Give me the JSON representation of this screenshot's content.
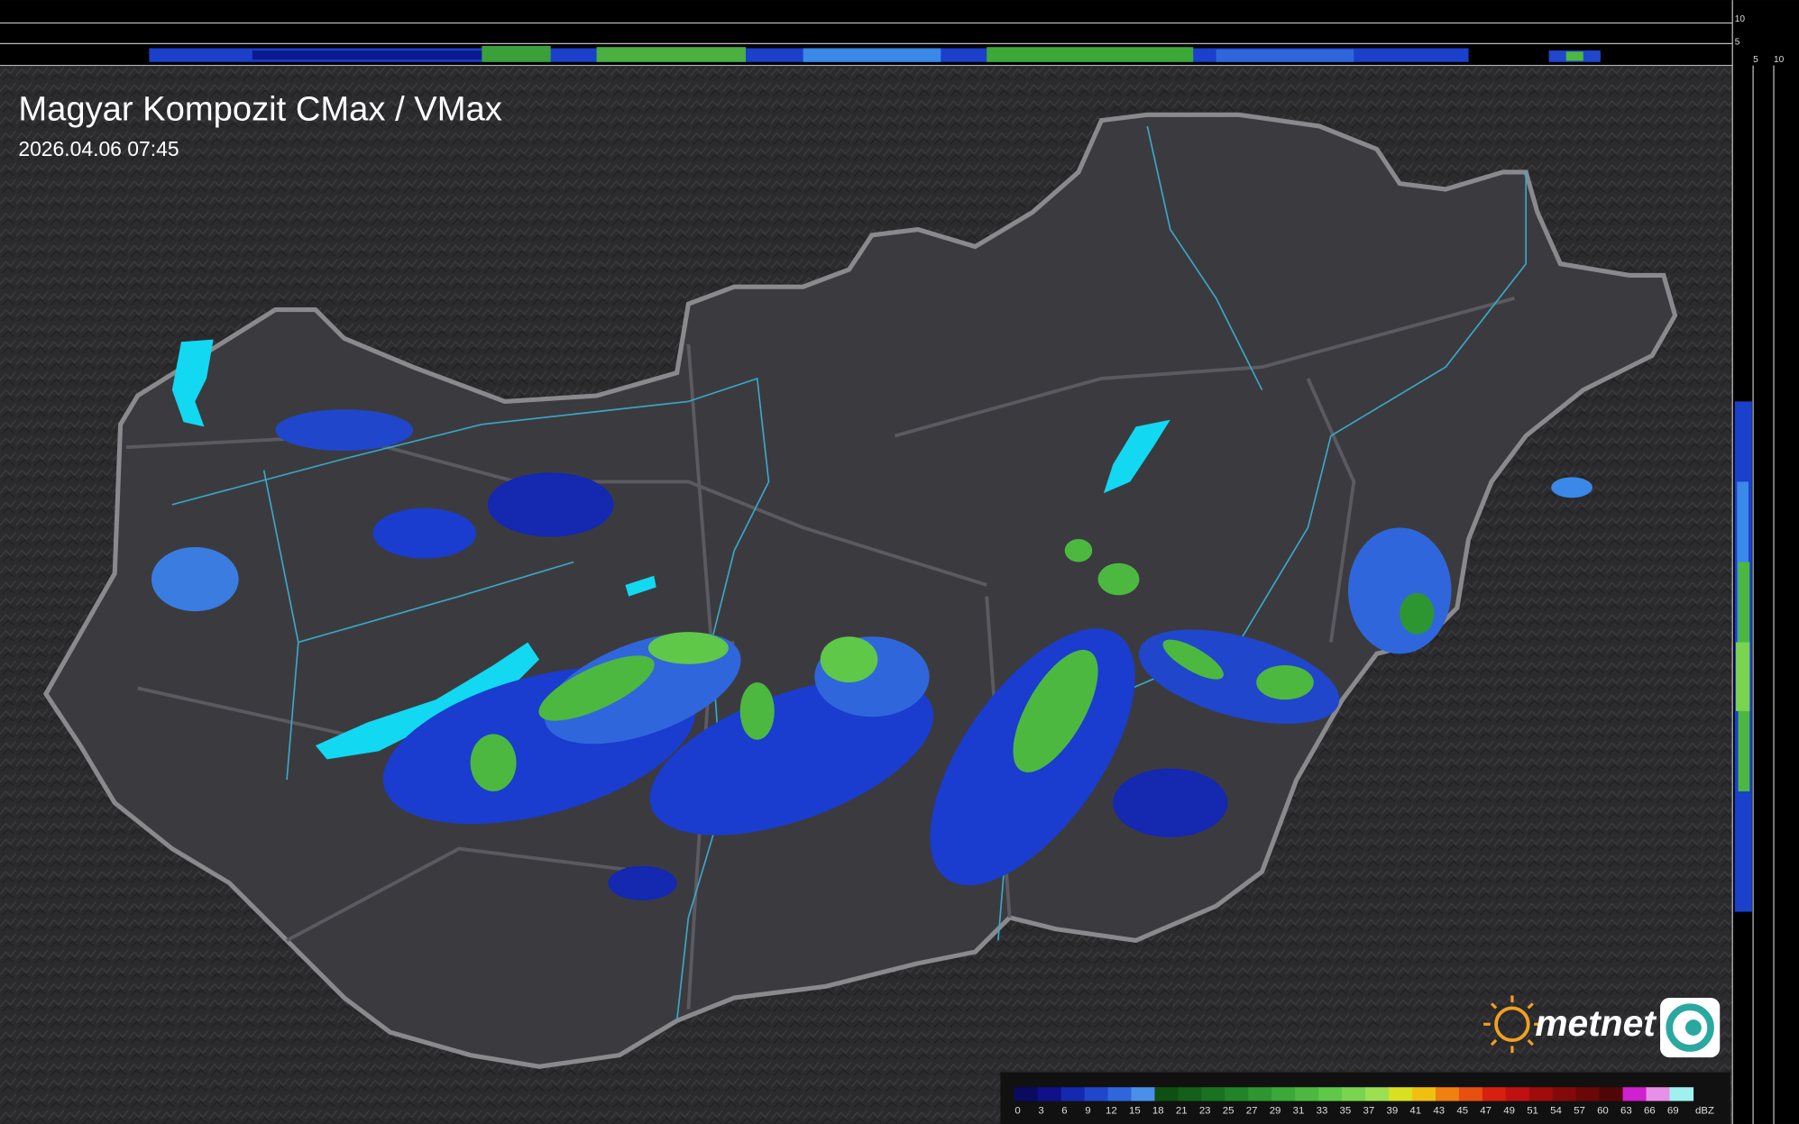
{
  "header": {
    "title": "Magyar Kompozit CMax / VMax",
    "timestamp": "2026.04.06 07:45"
  },
  "side_axis": {
    "top_labels": [
      "10",
      "5"
    ],
    "right_labels": [
      "5",
      "10"
    ]
  },
  "logo": {
    "text": "metnet"
  },
  "legend": {
    "unit": "dBZ",
    "labels": [
      0,
      3,
      6,
      9,
      12,
      15,
      18,
      21,
      23,
      25,
      27,
      29,
      31,
      33,
      35,
      37,
      39,
      41,
      43,
      45,
      47,
      49,
      51,
      54,
      57,
      60,
      63,
      66,
      69
    ],
    "colors": [
      "#0a0a60",
      "#10108a",
      "#1428b0",
      "#2046cc",
      "#3066dc",
      "#4a90ea",
      "#0e4f12",
      "#14601a",
      "#1a7220",
      "#228428",
      "#2e9630",
      "#3ca838",
      "#4cb840",
      "#60c848",
      "#7ad450",
      "#9ae050",
      "#d8e020",
      "#f0c010",
      "#f08010",
      "#e85010",
      "#d82010",
      "#c01010",
      "#a00c0c",
      "#840a0a",
      "#6a0808",
      "#500606",
      "#d020d0",
      "#e890e8",
      "#a0f0f0"
    ]
  }
}
